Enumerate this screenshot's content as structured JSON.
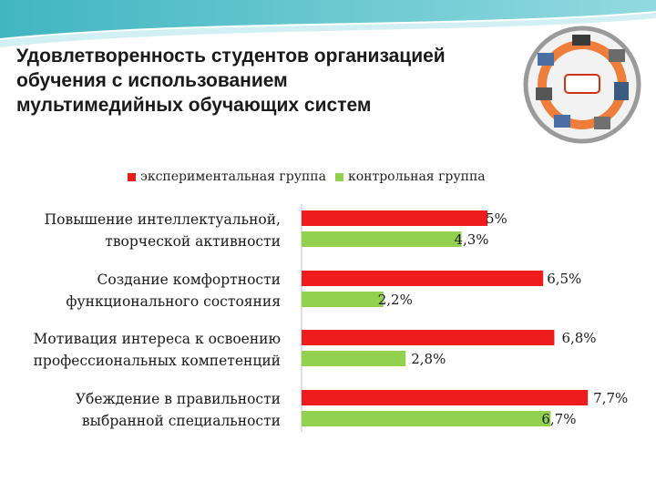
{
  "title_lines": [
    "Удовлетворенность студентов организацией",
    "обучения с использованием",
    "мультимедийных обучающих систем"
  ],
  "colors": {
    "experimental": "#ee1c1c",
    "control": "#92d050"
  },
  "chart_data": {
    "type": "bar",
    "orientation": "horizontal",
    "legend_position": "top",
    "categories": [
      [
        "Повышение интеллектуальной,",
        "творческой активности"
      ],
      [
        "Создание комфортности",
        "функционального состояния"
      ],
      [
        "Мотивация интереса к освоению",
        "профессиональных компетенций"
      ],
      [
        "Убеждение в правильности",
        "выбранной специальности"
      ]
    ],
    "series": [
      {
        "name": "экспериментальная группа",
        "values": [
          5,
          6.5,
          6.8,
          7.7
        ],
        "labels": [
          "5%",
          "6,5%",
          "6,8%",
          "7,7%"
        ]
      },
      {
        "name": "контрольная группа",
        "values": [
          4.3,
          2.2,
          2.8,
          6.7
        ],
        "labels": [
          "4,3%",
          "2,2%",
          "2,8%",
          "6,7%"
        ]
      }
    ]
  }
}
